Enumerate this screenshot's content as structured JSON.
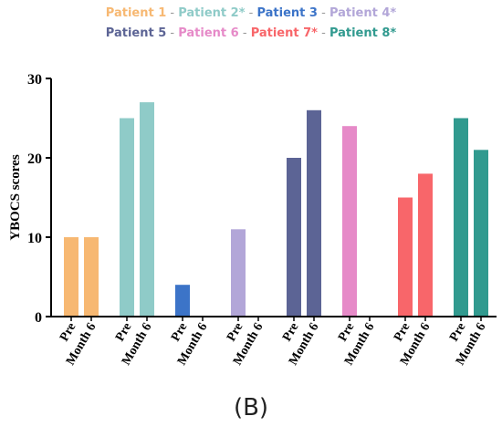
{
  "chart_data": {
    "type": "bar",
    "ylabel": "YBOCS scores",
    "ylim": [
      0,
      30
    ],
    "yticks": [
      0,
      10,
      20,
      30
    ],
    "groups": [
      {
        "name": "Patient 1",
        "color": "#F7B872",
        "bars": [
          {
            "label": "Pre",
            "value": 10
          },
          {
            "label": "Month 6",
            "value": 10
          }
        ]
      },
      {
        "name": "Patient 2*",
        "color": "#8FCBC8",
        "bars": [
          {
            "label": "Pre",
            "value": 25
          },
          {
            "label": "Month 6",
            "value": 27
          }
        ]
      },
      {
        "name": "Patient 3",
        "color": "#3C74C8",
        "bars": [
          {
            "label": "Pre",
            "value": 4
          },
          {
            "label": "Month 6",
            "value": null
          }
        ]
      },
      {
        "name": "Patient 4*",
        "color": "#B2A6D8",
        "bars": [
          {
            "label": "Pre",
            "value": 11
          },
          {
            "label": "Month 6",
            "value": null
          }
        ]
      },
      {
        "name": "Patient 5",
        "color": "#5C6495",
        "bars": [
          {
            "label": "Pre",
            "value": 20
          },
          {
            "label": "Month 6",
            "value": 26
          }
        ]
      },
      {
        "name": "Patient 6",
        "color": "#E68AC8",
        "bars": [
          {
            "label": "Pre",
            "value": 24
          },
          {
            "label": "Month 6",
            "value": null
          }
        ]
      },
      {
        "name": "Patient 7*",
        "color": "#F8666A",
        "bars": [
          {
            "label": "Pre",
            "value": 15
          },
          {
            "label": "Month 6",
            "value": 18
          }
        ]
      },
      {
        "name": "Patient 8*",
        "color": "#319A8F",
        "bars": [
          {
            "label": "Pre",
            "value": 25
          },
          {
            "label": "Month 6",
            "value": 21
          }
        ]
      }
    ],
    "legend_separator": "-"
  },
  "panel_label": "(B)"
}
